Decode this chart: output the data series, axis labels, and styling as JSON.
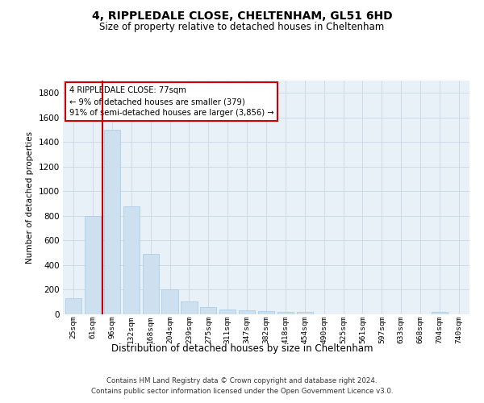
{
  "title": "4, RIPPLEDALE CLOSE, CHELTENHAM, GL51 6HD",
  "subtitle": "Size of property relative to detached houses in Cheltenham",
  "xlabel": "Distribution of detached houses by size in Cheltenham",
  "ylabel": "Number of detached properties",
  "footer_line1": "Contains HM Land Registry data © Crown copyright and database right 2024.",
  "footer_line2": "Contains public sector information licensed under the Open Government Licence v3.0.",
  "annotation_title": "4 RIPPLEDALE CLOSE: 77sqm",
  "annotation_line1": "← 9% of detached houses are smaller (379)",
  "annotation_line2": "91% of semi-detached houses are larger (3,856) →",
  "bar_color": "#cce0f0",
  "bar_edge_color": "#a8c8e8",
  "vline_color": "#cc0000",
  "annotation_box_edgecolor": "#cc0000",
  "categories": [
    "25sqm",
    "61sqm",
    "96sqm",
    "132sqm",
    "168sqm",
    "204sqm",
    "239sqm",
    "275sqm",
    "311sqm",
    "347sqm",
    "382sqm",
    "418sqm",
    "454sqm",
    "490sqm",
    "525sqm",
    "561sqm",
    "597sqm",
    "633sqm",
    "668sqm",
    "704sqm",
    "740sqm"
  ],
  "values": [
    130,
    800,
    1500,
    880,
    490,
    205,
    105,
    60,
    42,
    32,
    25,
    20,
    20,
    2,
    2,
    2,
    2,
    2,
    2,
    22,
    2
  ],
  "ylim": [
    0,
    1900
  ],
  "yticks": [
    0,
    200,
    400,
    600,
    800,
    1000,
    1200,
    1400,
    1600,
    1800
  ],
  "grid_color": "#ccd8e8",
  "bg_color": "#e8f0f8",
  "vline_x": 1.5,
  "figsize": [
    6.0,
    5.0
  ],
  "dpi": 100
}
